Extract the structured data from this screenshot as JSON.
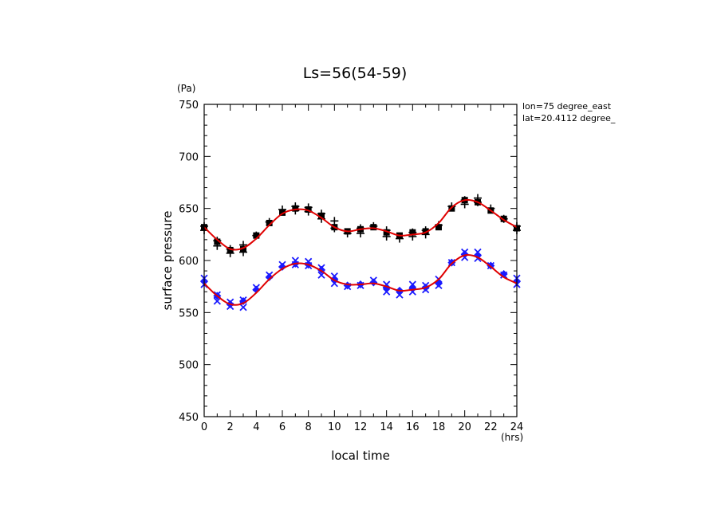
{
  "chart_data": {
    "type": "scatter",
    "title": "Ls=56(54-59)",
    "xlabel": "local time",
    "ylabel": "surface pressure",
    "x_unit": "(hrs)",
    "y_unit": "(Pa)",
    "xlim": [
      0,
      24
    ],
    "ylim": [
      450,
      750
    ],
    "xticks": [
      0,
      2,
      4,
      6,
      8,
      10,
      12,
      14,
      16,
      18,
      20,
      22,
      24
    ],
    "yticks": [
      450,
      500,
      550,
      600,
      650,
      700,
      750
    ],
    "xtick_labels": [
      "0",
      "2",
      "4",
      "6",
      "8",
      "10",
      "12",
      "14",
      "16",
      "18",
      "20",
      "22",
      "24"
    ],
    "ytick_labels": [
      "450",
      "500",
      "550",
      "600",
      "650",
      "700",
      "750"
    ],
    "annotations": [
      "lon=75 degree_east",
      "lat=20.4112 degree_"
    ],
    "grid": false,
    "colors": {
      "plus": "#000000",
      "square": "#000000",
      "cross": "#1a1aff",
      "diamond": "#1a1aff",
      "fit": "#e00000"
    },
    "series": [
      {
        "marker": "plus",
        "x": [
          0,
          0,
          1,
          1,
          2,
          2,
          3,
          3,
          4,
          5,
          6,
          7,
          7,
          8,
          8,
          9,
          9,
          10,
          10,
          11,
          12,
          12,
          13,
          14,
          14,
          15,
          16,
          16,
          17,
          17,
          18,
          19,
          20,
          20,
          21,
          21,
          22,
          23,
          24,
          24
        ],
        "y": [
          633,
          629,
          619,
          614,
          611,
          607,
          615,
          608,
          624,
          637,
          649,
          652,
          648,
          651,
          647,
          645,
          640,
          638,
          631,
          626,
          631,
          626,
          633,
          629,
          623,
          621,
          627,
          623,
          629,
          625,
          634,
          652,
          658,
          654,
          660,
          656,
          650,
          640,
          633,
          629
        ]
      },
      {
        "marker": "square",
        "x": [
          0,
          1,
          2,
          3,
          4,
          5,
          6,
          7,
          8,
          9,
          10,
          11,
          12,
          13,
          14,
          15,
          16,
          17,
          18,
          19,
          20,
          21,
          22,
          23,
          24
        ],
        "y": [
          632,
          618,
          610,
          611,
          624,
          636,
          646,
          650,
          649,
          643,
          632,
          628,
          630,
          632,
          627,
          624,
          627,
          628,
          632,
          650,
          658,
          656,
          648,
          640,
          631
        ]
      },
      {
        "marker": "cross",
        "x": [
          0,
          0,
          1,
          1,
          2,
          2,
          3,
          3,
          4,
          5,
          6,
          7,
          7,
          8,
          8,
          9,
          9,
          10,
          10,
          11,
          12,
          13,
          14,
          14,
          15,
          16,
          16,
          17,
          17,
          18,
          18,
          19,
          20,
          20,
          21,
          21,
          22,
          23,
          24,
          24
        ],
        "y": [
          583,
          577,
          567,
          561,
          560,
          556,
          562,
          555,
          574,
          586,
          596,
          600,
          596,
          599,
          595,
          593,
          586,
          585,
          578,
          575,
          576,
          581,
          577,
          570,
          567,
          577,
          570,
          576,
          572,
          582,
          576,
          598,
          608,
          603,
          608,
          602,
          595,
          586,
          583,
          577
        ]
      },
      {
        "marker": "diamond",
        "x": [
          0,
          1,
          2,
          3,
          4,
          5,
          6,
          7,
          8,
          9,
          10,
          11,
          12,
          13,
          14,
          15,
          16,
          17,
          18,
          19,
          20,
          21,
          22,
          23,
          24
        ],
        "y": [
          580,
          566,
          558,
          561,
          572,
          584,
          594,
          597,
          596,
          591,
          582,
          576,
          577,
          579,
          574,
          571,
          573,
          574,
          578,
          598,
          606,
          605,
          595,
          587,
          580
        ]
      }
    ],
    "fit_curves": [
      {
        "x": [
          0,
          1,
          2,
          3,
          4,
          5,
          6,
          7,
          8,
          9,
          10,
          11,
          12,
          13,
          14,
          15,
          16,
          17,
          18,
          19,
          20,
          21,
          22,
          23,
          24
        ],
        "y": [
          632,
          620,
          611,
          612,
          621,
          634,
          645,
          649,
          648,
          641,
          632,
          628,
          630,
          631,
          628,
          624,
          625,
          627,
          636,
          651,
          658,
          656,
          648,
          639,
          632
        ]
      },
      {
        "x": [
          0,
          1,
          2,
          3,
          4,
          5,
          6,
          7,
          8,
          9,
          10,
          11,
          12,
          13,
          14,
          15,
          16,
          17,
          18,
          19,
          20,
          21,
          22,
          23,
          24
        ],
        "y": [
          578,
          566,
          558,
          559,
          569,
          582,
          592,
          597,
          596,
          590,
          581,
          577,
          577,
          578,
          575,
          571,
          572,
          574,
          582,
          597,
          605,
          603,
          594,
          584,
          578
        ]
      }
    ]
  }
}
